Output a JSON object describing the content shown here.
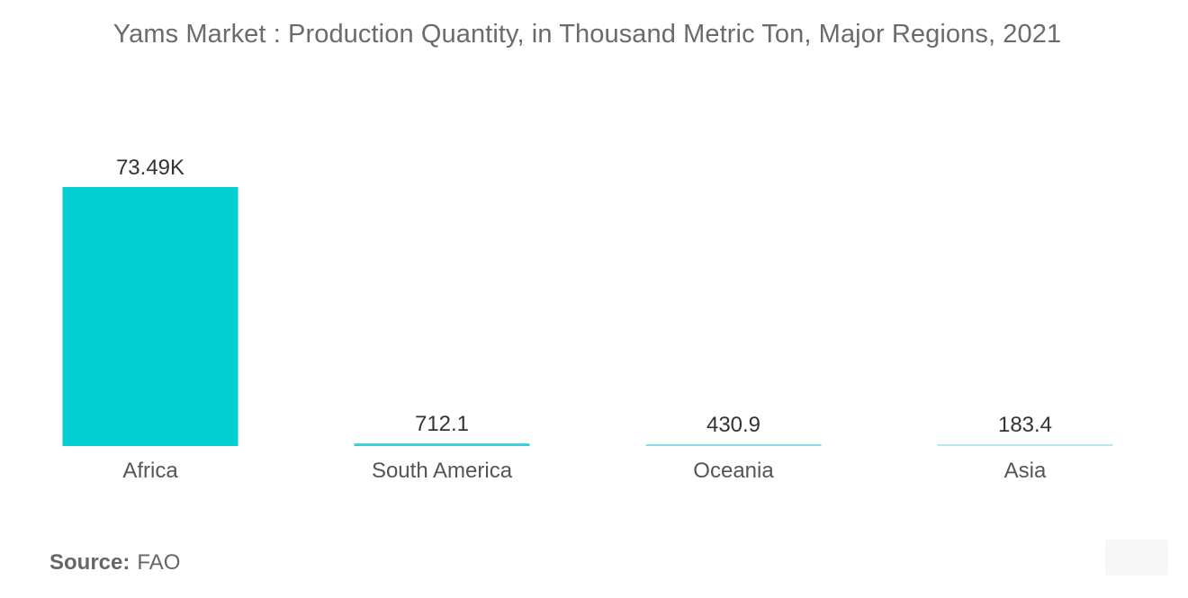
{
  "chart_data": {
    "type": "bar",
    "title": "Yams Market : Production Quantity, in Thousand Metric Ton, Major Regions, 2021",
    "categories": [
      "Africa",
      "South America",
      "Oceania",
      "Asia"
    ],
    "values": [
      73490,
      712.1,
      430.9,
      183.4
    ],
    "value_labels": [
      "73.49K",
      "712.1",
      "430.9",
      "183.4"
    ],
    "ylim": [
      0,
      73490
    ],
    "grid": false,
    "colors": [
      "#00ced1",
      "#33cfd2",
      "#8adde6",
      "#b6e6ee"
    ]
  },
  "source": {
    "label": "Source:",
    "value": "FAO"
  }
}
